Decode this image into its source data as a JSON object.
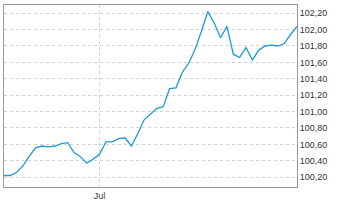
{
  "chart_data": {
    "type": "line",
    "color": "#1e9bd7",
    "categories": [
      null,
      null,
      null,
      null,
      null,
      null,
      null,
      null,
      null,
      null,
      null,
      null,
      null,
      null,
      null,
      "Jul",
      null,
      null,
      null,
      null,
      null,
      null,
      null,
      null,
      null,
      null,
      null,
      null,
      null,
      null,
      null,
      null,
      null,
      null,
      null,
      null,
      null,
      null,
      null,
      null,
      null,
      null,
      null,
      null,
      null,
      null,
      null
    ],
    "values": [
      100.22,
      100.22,
      100.26,
      100.34,
      100.46,
      100.56,
      100.58,
      100.57,
      100.58,
      100.61,
      100.62,
      100.5,
      100.45,
      100.37,
      100.42,
      100.48,
      100.63,
      100.63,
      100.67,
      100.68,
      100.58,
      100.73,
      100.9,
      100.97,
      101.04,
      101.06,
      101.28,
      101.29,
      101.48,
      101.59,
      101.76,
      101.98,
      102.22,
      102.08,
      101.9,
      102.04,
      101.7,
      101.66,
      101.78,
      101.63,
      101.75,
      101.8,
      101.81,
      101.8,
      101.83,
      101.94,
      102.04
    ],
    "ylim": [
      100.08,
      102.3
    ],
    "yticks": [
      {
        "value": 100.2,
        "label": "100,20"
      },
      {
        "value": 100.4,
        "label": "100,40"
      },
      {
        "value": 100.6,
        "label": "100,60"
      },
      {
        "value": 100.8,
        "label": "100,80"
      },
      {
        "value": 101.0,
        "label": "101,00"
      },
      {
        "value": 101.2,
        "label": "101,20"
      },
      {
        "value": 101.4,
        "label": "101,40"
      },
      {
        "value": 101.6,
        "label": "101,60"
      },
      {
        "value": 101.8,
        "label": "101,80"
      },
      {
        "value": 102.0,
        "label": "102,00"
      },
      {
        "value": 102.2,
        "label": "102,20"
      }
    ],
    "grid": true
  }
}
